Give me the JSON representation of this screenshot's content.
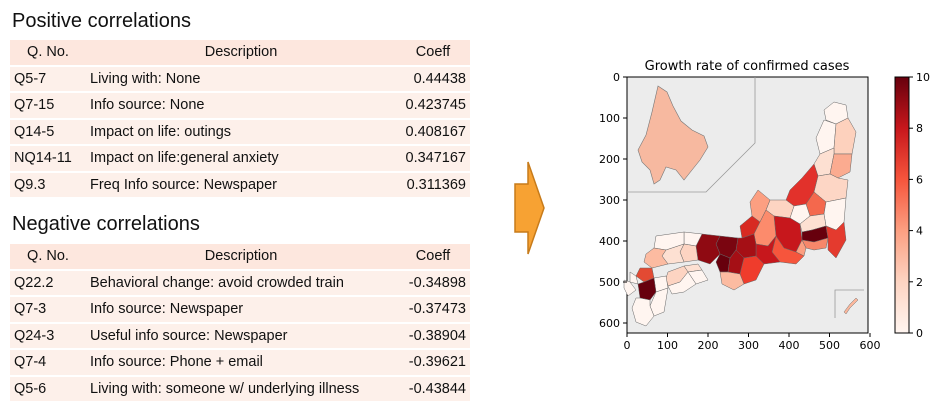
{
  "positive": {
    "title": "Positive correlations",
    "headers": [
      "Q. No.",
      "Description",
      "Coeff"
    ],
    "rows": [
      [
        "Q5-7",
        "Living with: None",
        "0.44438"
      ],
      [
        "Q7-15",
        "Info source: None",
        "0.423745"
      ],
      [
        "Q14-5",
        "Impact on life: outings",
        "0.408167"
      ],
      [
        "NQ14-11",
        "Impact on life:general anxiety",
        "0.347167"
      ],
      [
        "Q9.3",
        "Freq Info source: Newspaper",
        "0.311369"
      ]
    ]
  },
  "negative": {
    "title": "Negative correlations",
    "headers": [
      "Q. No.",
      "Description",
      "Coeff"
    ],
    "rows": [
      [
        "Q22.2",
        "Behavioral change: avoid crowded train",
        "-0.34898"
      ],
      [
        "Q7-3",
        "Info source: Newspaper",
        "-0.37473"
      ],
      [
        "Q24-3",
        "Useful info source: Newspaper",
        "-0.38904"
      ],
      [
        "Q7-4",
        "Info source: Phone + email",
        "-0.39621"
      ],
      [
        "Q5-6",
        "Living with: someone w/ underlying illness",
        "-0.43844"
      ]
    ]
  },
  "arrow": {
    "color": "#f7a233",
    "border": "#c77b1a",
    "icon": "right-arrow-icon"
  },
  "map": {
    "title": "Growth rate of confirmed cases",
    "xticks": [
      "0",
      "100",
      "200",
      "300",
      "400",
      "500",
      "600"
    ],
    "yticks": [
      "0",
      "100",
      "200",
      "300",
      "400",
      "500",
      "600"
    ],
    "colorbar_ticks": [
      "0",
      "2",
      "4",
      "6",
      "8",
      "10"
    ],
    "colormap": "Reds",
    "value_range": [
      0,
      10
    ]
  }
}
